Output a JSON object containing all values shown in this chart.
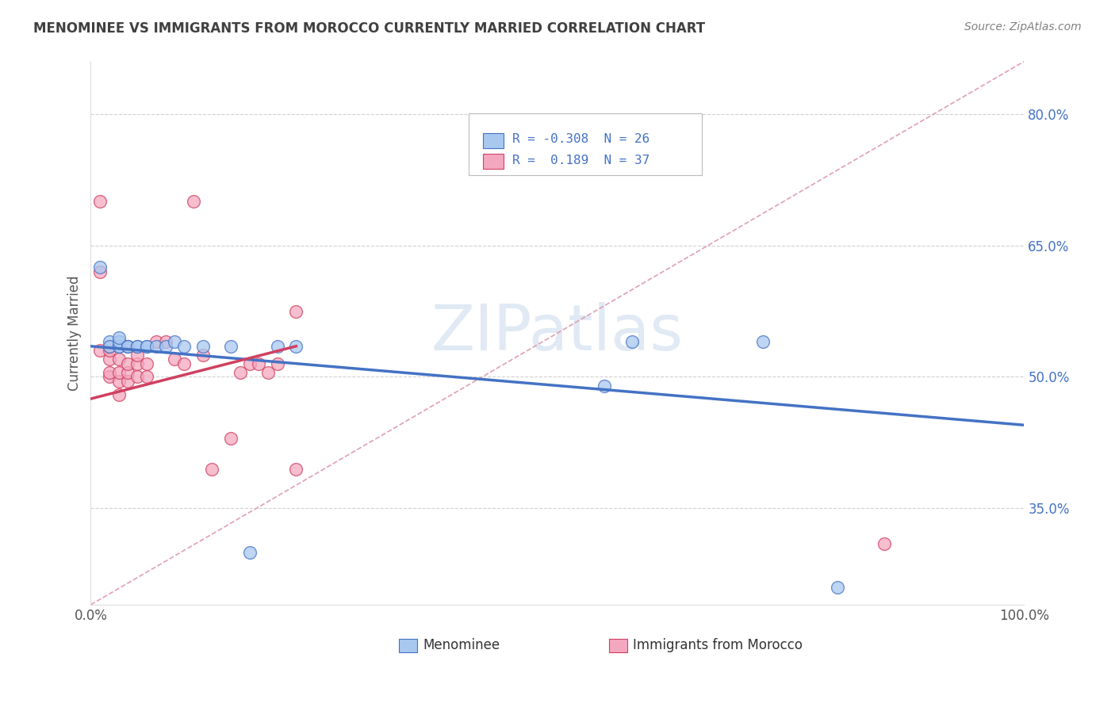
{
  "title": "MENOMINEE VS IMMIGRANTS FROM MOROCCO CURRENTLY MARRIED CORRELATION CHART",
  "source": "Source: ZipAtlas.com",
  "ylabel": "Currently Married",
  "xlim": [
    0.0,
    1.0
  ],
  "ylim": [
    0.24,
    0.86
  ],
  "y_ticks": [
    0.35,
    0.5,
    0.65,
    0.8
  ],
  "y_tick_labels": [
    "35.0%",
    "50.0%",
    "65.0%",
    "80.0%"
  ],
  "watermark": "ZIPatlas",
  "blue_scatter_x": [
    0.01,
    0.02,
    0.02,
    0.03,
    0.03,
    0.03,
    0.03,
    0.04,
    0.04,
    0.05,
    0.05,
    0.06,
    0.06,
    0.07,
    0.08,
    0.09,
    0.1,
    0.12,
    0.15,
    0.17,
    0.2,
    0.22,
    0.55,
    0.58,
    0.72,
    0.8
  ],
  "blue_scatter_y": [
    0.625,
    0.54,
    0.535,
    0.535,
    0.535,
    0.54,
    0.545,
    0.535,
    0.535,
    0.535,
    0.535,
    0.535,
    0.535,
    0.535,
    0.535,
    0.54,
    0.535,
    0.535,
    0.535,
    0.3,
    0.535,
    0.535,
    0.49,
    0.54,
    0.54,
    0.26
  ],
  "pink_scatter_x": [
    0.01,
    0.01,
    0.01,
    0.02,
    0.02,
    0.02,
    0.02,
    0.02,
    0.03,
    0.03,
    0.03,
    0.03,
    0.04,
    0.04,
    0.04,
    0.04,
    0.05,
    0.05,
    0.05,
    0.06,
    0.06,
    0.07,
    0.08,
    0.09,
    0.1,
    0.11,
    0.12,
    0.13,
    0.15,
    0.16,
    0.17,
    0.18,
    0.19,
    0.2,
    0.22,
    0.22,
    0.85
  ],
  "pink_scatter_y": [
    0.7,
    0.62,
    0.53,
    0.5,
    0.505,
    0.52,
    0.53,
    0.535,
    0.48,
    0.495,
    0.505,
    0.52,
    0.495,
    0.505,
    0.515,
    0.535,
    0.5,
    0.515,
    0.525,
    0.5,
    0.515,
    0.54,
    0.54,
    0.52,
    0.515,
    0.7,
    0.525,
    0.395,
    0.43,
    0.505,
    0.515,
    0.515,
    0.505,
    0.515,
    0.575,
    0.395,
    0.31
  ],
  "blue_line_x": [
    0.0,
    1.0
  ],
  "blue_line_y": [
    0.535,
    0.445
  ],
  "pink_line_x": [
    0.0,
    0.22
  ],
  "pink_line_y": [
    0.475,
    0.535
  ],
  "diagonal_line_x": [
    0.0,
    1.0
  ],
  "diagonal_line_y": [
    0.24,
    0.86
  ],
  "blue_color": "#A8C8F0",
  "pink_color": "#F4A8C0",
  "blue_line_color": "#4472C4",
  "pink_line_color": "#D04060",
  "diagonal_color": "#E0A0B0",
  "background_color": "#FFFFFF",
  "title_color": "#404040",
  "source_color": "#808080",
  "legend_color": "#4472C4",
  "grid_color": "#D0D0D0"
}
